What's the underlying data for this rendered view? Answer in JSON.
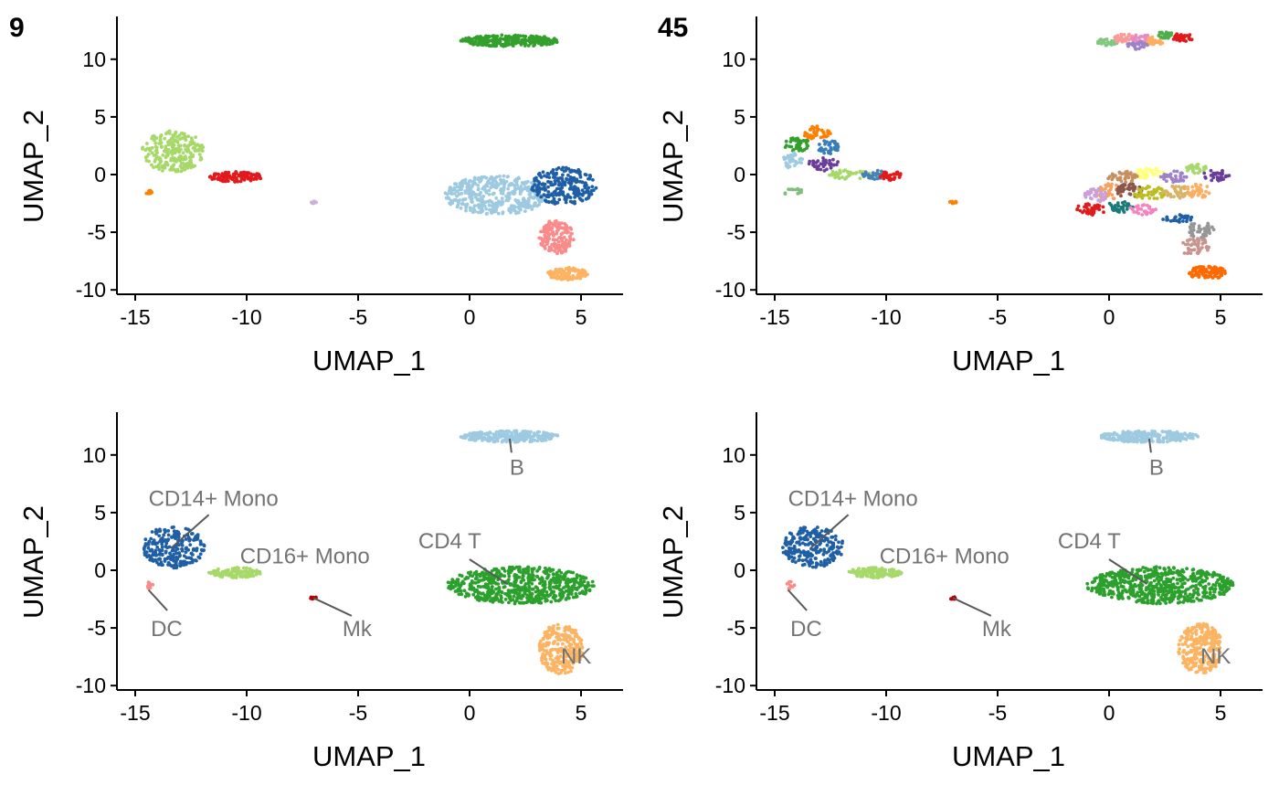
{
  "figure": {
    "panel_tags": [
      "9",
      "45",
      "",
      ""
    ]
  },
  "chart_data": [
    {
      "type": "scatter",
      "panel_tag": "9",
      "xlabel": "UMAP_1",
      "ylabel": "UMAP_2",
      "xlim": [
        -15.5,
        7
      ],
      "ylim": [
        -10.3,
        13.8
      ],
      "xticks": [
        -15,
        -10,
        -5,
        0,
        5
      ],
      "yticks": [
        -10,
        -5,
        0,
        5,
        10
      ],
      "grid": false,
      "legend": "none",
      "clusters": [
        {
          "cx": 1.8,
          "cy": 11.6,
          "rx": 2.2,
          "ry": 0.5,
          "n": 260,
          "color": "#33a02c"
        },
        {
          "cx": -13.3,
          "cy": 2.0,
          "rx": 1.4,
          "ry": 1.8,
          "n": 240,
          "color": "#a6d96a"
        },
        {
          "cx": -10.5,
          "cy": -0.2,
          "rx": 1.2,
          "ry": 0.45,
          "n": 120,
          "color": "#e31a1c"
        },
        {
          "cx": -14.4,
          "cy": -1.5,
          "rx": 0.15,
          "ry": 0.25,
          "n": 10,
          "color": "#ff7f00"
        },
        {
          "cx": -7.0,
          "cy": -2.4,
          "rx": 0.15,
          "ry": 0.12,
          "n": 8,
          "color": "#cab2d6"
        },
        {
          "cx": 1.2,
          "cy": -1.8,
          "rx": 2.3,
          "ry": 1.7,
          "n": 420,
          "color": "#9ecae1"
        },
        {
          "cx": 4.2,
          "cy": -1.0,
          "rx": 1.5,
          "ry": 1.6,
          "n": 240,
          "color": "#1f5fa6"
        },
        {
          "cx": 3.9,
          "cy": -5.4,
          "rx": 0.8,
          "ry": 1.5,
          "n": 160,
          "color": "#fb8a8a"
        },
        {
          "cx": 4.4,
          "cy": -8.6,
          "rx": 0.9,
          "ry": 0.55,
          "n": 120,
          "color": "#fdb462"
        }
      ]
    },
    {
      "type": "scatter",
      "panel_tag": "45",
      "xlabel": "UMAP_1",
      "ylabel": "UMAP_2",
      "xlim": [
        -15.5,
        7
      ],
      "ylim": [
        -10.3,
        13.8
      ],
      "xticks": [
        -15,
        -10,
        -5,
        0,
        5
      ],
      "yticks": [
        -10,
        -5,
        0,
        5,
        10
      ],
      "grid": false,
      "legend": "none",
      "clusters": [
        {
          "cx": -0.1,
          "cy": 11.5,
          "rx": 0.5,
          "ry": 0.3,
          "n": 25,
          "color": "#7fc97f"
        },
        {
          "cx": 0.7,
          "cy": 11.8,
          "rx": 0.5,
          "ry": 0.4,
          "n": 30,
          "color": "#fb9a99"
        },
        {
          "cx": 1.5,
          "cy": 11.8,
          "rx": 0.5,
          "ry": 0.4,
          "n": 30,
          "color": "#e78ac3"
        },
        {
          "cx": 1.3,
          "cy": 11.2,
          "rx": 0.5,
          "ry": 0.35,
          "n": 30,
          "color": "#9e82c8"
        },
        {
          "cx": 2.1,
          "cy": 11.6,
          "rx": 0.4,
          "ry": 0.35,
          "n": 30,
          "color": "#fdae61"
        },
        {
          "cx": 2.5,
          "cy": 12.1,
          "rx": 0.4,
          "ry": 0.3,
          "n": 25,
          "color": "#4daf4a"
        },
        {
          "cx": 3.3,
          "cy": 11.9,
          "rx": 0.5,
          "ry": 0.35,
          "n": 30,
          "color": "#e31a1c"
        },
        {
          "cx": -13.1,
          "cy": 3.6,
          "rx": 0.6,
          "ry": 0.6,
          "n": 40,
          "color": "#ff7f00"
        },
        {
          "cx": -14.0,
          "cy": 2.6,
          "rx": 0.6,
          "ry": 0.6,
          "n": 40,
          "color": "#33a02c"
        },
        {
          "cx": -12.6,
          "cy": 2.4,
          "rx": 0.5,
          "ry": 0.6,
          "n": 35,
          "color": "#377eb8"
        },
        {
          "cx": -14.2,
          "cy": 1.2,
          "rx": 0.5,
          "ry": 0.7,
          "n": 40,
          "color": "#9ecae1"
        },
        {
          "cx": -12.8,
          "cy": 0.9,
          "rx": 0.7,
          "ry": 0.6,
          "n": 40,
          "color": "#6a3d9a"
        },
        {
          "cx": -11.7,
          "cy": 0.0,
          "rx": 1.0,
          "ry": 0.4,
          "n": 45,
          "color": "#a6d96a"
        },
        {
          "cx": -10.5,
          "cy": 0.0,
          "rx": 0.6,
          "ry": 0.4,
          "n": 35,
          "color": "#4682b4"
        },
        {
          "cx": -9.8,
          "cy": -0.1,
          "rx": 0.5,
          "ry": 0.4,
          "n": 30,
          "color": "#e31a1c"
        },
        {
          "cx": -14.2,
          "cy": -1.5,
          "rx": 0.5,
          "ry": 0.3,
          "n": 15,
          "color": "#7fbf7b"
        },
        {
          "cx": -7.0,
          "cy": -2.4,
          "rx": 0.15,
          "ry": 0.12,
          "n": 8,
          "color": "#ff7f00"
        },
        {
          "cx": 1.8,
          "cy": 0.1,
          "rx": 0.7,
          "ry": 0.5,
          "n": 40,
          "color": "#ffff80"
        },
        {
          "cx": 0.6,
          "cy": -0.2,
          "rx": 0.7,
          "ry": 0.5,
          "n": 40,
          "color": "#c58f5f"
        },
        {
          "cx": 2.9,
          "cy": -0.2,
          "rx": 0.6,
          "ry": 0.5,
          "n": 35,
          "color": "#9e82c8"
        },
        {
          "cx": 3.9,
          "cy": 0.5,
          "rx": 0.5,
          "ry": 0.4,
          "n": 25,
          "color": "#a6d96a"
        },
        {
          "cx": 4.8,
          "cy": -0.1,
          "rx": 0.6,
          "ry": 0.5,
          "n": 30,
          "color": "#6a3d9a"
        },
        {
          "cx": 0.0,
          "cy": -1.5,
          "rx": 0.6,
          "ry": 0.7,
          "n": 40,
          "color": "#f4a261"
        },
        {
          "cx": -0.6,
          "cy": -1.8,
          "rx": 0.5,
          "ry": 0.6,
          "n": 35,
          "color": "#c9a0dc"
        },
        {
          "cx": 0.9,
          "cy": -1.4,
          "rx": 0.6,
          "ry": 0.6,
          "n": 40,
          "color": "#8c564b"
        },
        {
          "cx": 1.8,
          "cy": -1.6,
          "rx": 0.7,
          "ry": 0.6,
          "n": 45,
          "color": "#bcbd22"
        },
        {
          "cx": 3.0,
          "cy": -1.5,
          "rx": 0.6,
          "ry": 0.6,
          "n": 40,
          "color": "#d8b365"
        },
        {
          "cx": 4.0,
          "cy": -1.4,
          "rx": 0.6,
          "ry": 0.6,
          "n": 35,
          "color": "#fdae61"
        },
        {
          "cx": -0.8,
          "cy": -3.0,
          "rx": 0.7,
          "ry": 0.5,
          "n": 40,
          "color": "#e31a1c"
        },
        {
          "cx": 0.5,
          "cy": -2.8,
          "rx": 0.6,
          "ry": 0.5,
          "n": 35,
          "color": "#1b7a7a"
        },
        {
          "cx": 1.5,
          "cy": -3.0,
          "rx": 0.6,
          "ry": 0.5,
          "n": 30,
          "color": "#f781bf"
        },
        {
          "cx": 3.1,
          "cy": -3.8,
          "rx": 0.7,
          "ry": 0.4,
          "n": 30,
          "color": "#1f5fa6"
        },
        {
          "cx": 4.1,
          "cy": -4.8,
          "rx": 0.6,
          "ry": 0.7,
          "n": 35,
          "color": "#969696"
        },
        {
          "cx": 3.9,
          "cy": -6.3,
          "rx": 0.7,
          "ry": 0.8,
          "n": 45,
          "color": "#c9948d"
        },
        {
          "cx": 4.4,
          "cy": -8.5,
          "rx": 0.9,
          "ry": 0.55,
          "n": 110,
          "color": "#ff6a00"
        }
      ]
    },
    {
      "type": "scatter",
      "panel_tag": "",
      "xlabel": "UMAP_1",
      "ylabel": "UMAP_2",
      "xlim": [
        -15.5,
        7
      ],
      "ylim": [
        -10.3,
        13.8
      ],
      "xticks": [
        -15,
        -10,
        -5,
        0,
        5
      ],
      "yticks": [
        -10,
        -5,
        0,
        5,
        10
      ],
      "grid": false,
      "legend": "none",
      "clusters": [
        {
          "cx": 1.8,
          "cy": 11.6,
          "rx": 2.2,
          "ry": 0.5,
          "n": 260,
          "color": "#9ecae1"
        },
        {
          "cx": -13.3,
          "cy": 2.0,
          "rx": 1.4,
          "ry": 1.8,
          "n": 240,
          "color": "#1f5fa6"
        },
        {
          "cx": -10.5,
          "cy": -0.2,
          "rx": 1.2,
          "ry": 0.45,
          "n": 120,
          "color": "#a6d96a"
        },
        {
          "cx": -14.3,
          "cy": -1.3,
          "rx": 0.2,
          "ry": 0.35,
          "n": 12,
          "color": "#fb8a8a"
        },
        {
          "cx": -7.0,
          "cy": -2.4,
          "rx": 0.15,
          "ry": 0.12,
          "n": 8,
          "color": "#b30000"
        },
        {
          "cx": 2.3,
          "cy": -1.3,
          "rx": 3.3,
          "ry": 1.6,
          "n": 650,
          "color": "#2ca02c"
        },
        {
          "cx": 4.1,
          "cy": -6.8,
          "rx": 1.0,
          "ry": 2.2,
          "n": 260,
          "color": "#fdb462"
        }
      ],
      "annotations": [
        {
          "text": "B",
          "x": 1.8,
          "y": 8.3,
          "tx": 1.8,
          "ty": 11.4
        },
        {
          "text": "CD14+ Mono",
          "x": -14.4,
          "y": 5.6,
          "tx": -13.4,
          "ty": 1.9
        },
        {
          "text": "CD16+ Mono",
          "x": -10.3,
          "y": 0.6,
          "tx": -10.4,
          "ty": 0.6
        },
        {
          "text": "CD4 T",
          "x": -2.3,
          "y": 1.9,
          "tx": 1.7,
          "ty": -1.2
        },
        {
          "text": "DC",
          "x": -14.3,
          "y": -5.7,
          "tx": -14.4,
          "ty": -1.7
        },
        {
          "text": "Mk",
          "x": -5.7,
          "y": -5.7,
          "tx": -7.0,
          "ty": -2.4
        },
        {
          "text": "NK",
          "x": 4.1,
          "y": -8.1,
          "tx": 4.1,
          "ty": -8.1
        }
      ]
    },
    {
      "type": "scatter",
      "panel_tag": "",
      "xlabel": "UMAP_1",
      "ylabel": "UMAP_2",
      "xlim": [
        -15.5,
        7
      ],
      "ylim": [
        -10.3,
        13.8
      ],
      "xticks": [
        -15,
        -10,
        -5,
        0,
        5
      ],
      "yticks": [
        -10,
        -5,
        0,
        5,
        10
      ],
      "grid": false,
      "legend": "none",
      "clusters": [
        {
          "cx": 1.8,
          "cy": 11.6,
          "rx": 2.2,
          "ry": 0.5,
          "n": 260,
          "color": "#9ecae1"
        },
        {
          "cx": -13.3,
          "cy": 2.0,
          "rx": 1.4,
          "ry": 1.8,
          "n": 240,
          "color": "#1f5fa6"
        },
        {
          "cx": -10.5,
          "cy": -0.2,
          "rx": 1.2,
          "ry": 0.45,
          "n": 120,
          "color": "#a6d96a"
        },
        {
          "cx": -14.3,
          "cy": -1.3,
          "rx": 0.2,
          "ry": 0.35,
          "n": 12,
          "color": "#fb8a8a"
        },
        {
          "cx": -7.0,
          "cy": -2.4,
          "rx": 0.15,
          "ry": 0.12,
          "n": 8,
          "color": "#b30000"
        },
        {
          "cx": 2.3,
          "cy": -1.3,
          "rx": 3.3,
          "ry": 1.6,
          "n": 650,
          "color": "#2ca02c"
        },
        {
          "cx": 4.1,
          "cy": -6.8,
          "rx": 1.0,
          "ry": 2.2,
          "n": 260,
          "color": "#fdb462"
        }
      ],
      "annotations": [
        {
          "text": "B",
          "x": 1.8,
          "y": 8.3,
          "tx": 1.8,
          "ty": 11.4
        },
        {
          "text": "CD14+ Mono",
          "x": -14.4,
          "y": 5.6,
          "tx": -13.4,
          "ty": 1.9
        },
        {
          "text": "CD16+ Mono",
          "x": -10.3,
          "y": 0.6,
          "tx": -10.4,
          "ty": 0.6
        },
        {
          "text": "CD4 T",
          "x": -2.3,
          "y": 1.9,
          "tx": 1.7,
          "ty": -1.2
        },
        {
          "text": "DC",
          "x": -14.3,
          "y": -5.7,
          "tx": -14.4,
          "ty": -1.7
        },
        {
          "text": "Mk",
          "x": -5.7,
          "y": -5.7,
          "tx": -7.0,
          "ty": -2.4
        },
        {
          "text": "NK",
          "x": 4.1,
          "y": -8.1,
          "tx": 4.1,
          "ty": -8.1
        }
      ]
    }
  ]
}
